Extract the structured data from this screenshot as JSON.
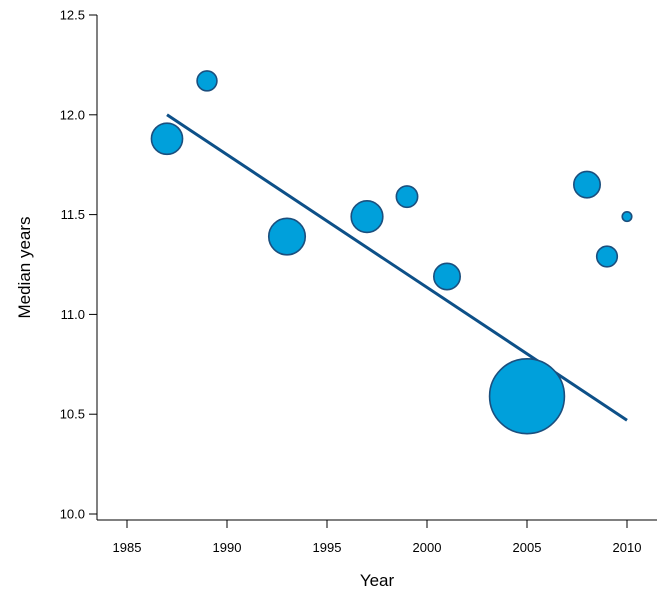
{
  "chart_data": {
    "type": "scatter",
    "title": "",
    "xlabel": "Year",
    "ylabel": "Median years",
    "xlim": [
      1983.5,
      2011.5
    ],
    "ylim": [
      9.97,
      12.5
    ],
    "x_ticks": [
      1985,
      1990,
      1995,
      2000,
      2005,
      2010
    ],
    "y_ticks": [
      10.0,
      10.5,
      11.0,
      11.5,
      12.0,
      12.5
    ],
    "x_tick_labels": [
      "1985",
      "1990",
      "1995",
      "2000",
      "2005",
      "2010"
    ],
    "y_tick_labels": [
      "10.0",
      "10.5",
      "11.0",
      "11.5",
      "12.0",
      "12.5"
    ],
    "grid": false,
    "legend": "none",
    "marker_color": "#00a0db",
    "marker_edge_color": "#1b4f7e",
    "line_color": "#0d5088",
    "points": [
      {
        "x": 1987,
        "y": 11.88,
        "size": 3.2
      },
      {
        "x": 1989,
        "y": 12.17,
        "size": 1.3
      },
      {
        "x": 1993,
        "y": 11.39,
        "size": 4.4
      },
      {
        "x": 1997,
        "y": 11.49,
        "size": 3.3
      },
      {
        "x": 1999,
        "y": 11.59,
        "size": 1.5
      },
      {
        "x": 2001,
        "y": 11.19,
        "size": 2.3
      },
      {
        "x": 2005,
        "y": 10.59,
        "size": 18.5
      },
      {
        "x": 2008,
        "y": 11.65,
        "size": 2.3
      },
      {
        "x": 2009,
        "y": 11.29,
        "size": 1.4
      },
      {
        "x": 2010,
        "y": 11.49,
        "size": 0.3
      }
    ],
    "trend_line": {
      "x": [
        1987,
        2010
      ],
      "y": [
        12.0,
        10.47
      ]
    }
  }
}
